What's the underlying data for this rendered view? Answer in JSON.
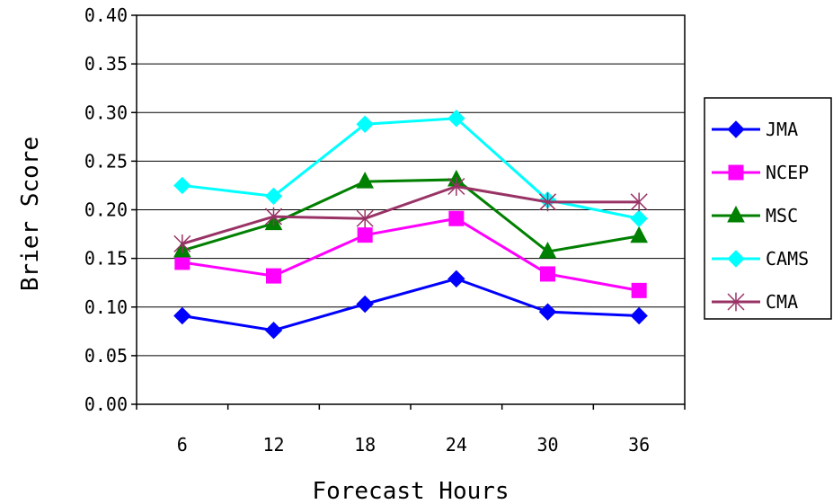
{
  "chart_data": {
    "type": "line",
    "title": "",
    "xlabel": "Forecast Hours",
    "ylabel": "Brier Score",
    "categories": [
      "6",
      "12",
      "18",
      "24",
      "30",
      "36"
    ],
    "ylim": [
      0,
      0.4
    ],
    "yticks": [
      "0.00",
      "0.05",
      "0.10",
      "0.15",
      "0.20",
      "0.25",
      "0.30",
      "0.35",
      "0.40"
    ],
    "grid": "horizontal",
    "legend_position": "right",
    "series": [
      {
        "name": "JMA",
        "color": "#0000ff",
        "marker": "diamond",
        "values": [
          0.091,
          0.076,
          0.103,
          0.129,
          0.095,
          0.091
        ]
      },
      {
        "name": "NCEP",
        "color": "#ff00ff",
        "marker": "square",
        "values": [
          0.146,
          0.132,
          0.174,
          0.191,
          0.134,
          0.117
        ]
      },
      {
        "name": "MSC",
        "color": "#008000",
        "marker": "triangle",
        "values": [
          0.158,
          0.186,
          0.229,
          0.231,
          0.157,
          0.173
        ]
      },
      {
        "name": "CAMS",
        "color": "#00ffff",
        "marker": "diamond",
        "values": [
          0.225,
          0.214,
          0.288,
          0.294,
          0.21,
          0.191
        ]
      },
      {
        "name": "CMA",
        "color": "#993366",
        "marker": "asterisk",
        "values": [
          0.165,
          0.193,
          0.191,
          0.224,
          0.208,
          0.208
        ]
      }
    ]
  }
}
